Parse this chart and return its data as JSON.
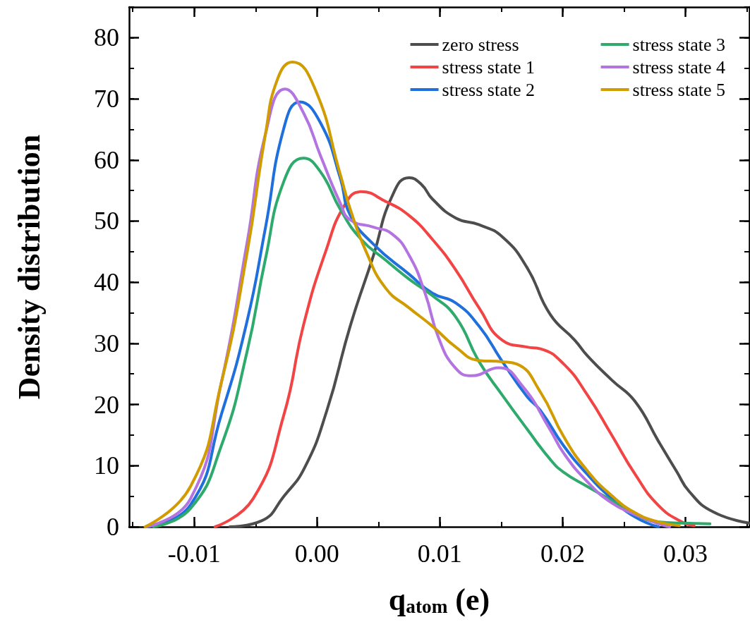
{
  "chart_data": {
    "type": "line",
    "xlabel": "q$_{atom}$ (e)",
    "ylabel": "Density distribution",
    "xlim": [
      -0.0153,
      0.0352
    ],
    "ylim": [
      0,
      85
    ],
    "xticks": [
      {
        "value": -0.01,
        "label": "-0.01"
      },
      {
        "value": 0,
        "label": "0.00"
      },
      {
        "value": 0.01,
        "label": "0.01"
      },
      {
        "value": 0.02,
        "label": "0.02"
      },
      {
        "value": 0.03,
        "label": "0.03"
      }
    ],
    "yticks": [
      0,
      10,
      20,
      30,
      40,
      50,
      60,
      70,
      80
    ],
    "grid": false,
    "legend": "top right",
    "marker": "none",
    "line_style": "solid",
    "series": [
      {
        "name": "zero stress",
        "color": "#4d4d4d",
        "x": [
          -0.0071,
          -0.0045,
          -0.0027,
          -0.001,
          0.0008,
          0.0027,
          0.0046,
          0.0061,
          0.0075,
          0.0085,
          0.0094,
          0.0113,
          0.0132,
          0.0151,
          0.0171,
          0.019,
          0.021,
          0.022,
          0.024,
          0.0259,
          0.0278,
          0.0293,
          0.0303,
          0.0322,
          0.0352
        ],
        "values": [
          0,
          1,
          5,
          9.7,
          19,
          32.8,
          44.4,
          54,
          57.1,
          56,
          53.6,
          50.5,
          49.4,
          47.4,
          42.4,
          34.7,
          30.5,
          28,
          24,
          20.5,
          14,
          9,
          5.8,
          2.5,
          0.6
        ]
      },
      {
        "name": "stress state 1",
        "color": "#f24444",
        "x": [
          -0.0083,
          -0.0052,
          -0.0027,
          -0.0011,
          0.0007,
          0.0023,
          0.0036,
          0.0056,
          0.0075,
          0.0094,
          0.0113,
          0.0132,
          0.0151,
          0.0171,
          0.0182,
          0.0201,
          0.022,
          0.024,
          0.0259,
          0.0278,
          0.0297,
          0.0307
        ],
        "values": [
          0,
          4.6,
          18.3,
          33,
          45,
          52.8,
          54.8,
          53.2,
          50.9,
          47,
          42,
          35.8,
          30.5,
          29.4,
          29.1,
          26.6,
          21.6,
          15,
          8.6,
          3.5,
          0.8,
          0.2
        ]
      },
      {
        "name": "stress state 2",
        "color": "#1f6fdc",
        "x": [
          -0.0139,
          -0.0103,
          -0.0078,
          -0.0057,
          -0.0042,
          -0.0027,
          -0.0014,
          0.0003,
          0.0019,
          0.0027,
          0.0046,
          0.0075,
          0.0094,
          0.0113,
          0.0132,
          0.0151,
          0.0171,
          0.0182,
          0.0201,
          0.022,
          0.024,
          0.0259,
          0.0278
        ],
        "values": [
          0,
          3.6,
          18.3,
          33.6,
          48.9,
          65.2,
          69.5,
          66,
          57,
          51,
          46.2,
          41.3,
          38.2,
          36.6,
          32.8,
          27,
          21.3,
          19,
          13.2,
          8.6,
          4.6,
          1.6,
          0
        ]
      },
      {
        "name": "stress state 3",
        "color": "#2eaa6c",
        "x": [
          -0.0133,
          -0.0103,
          -0.0078,
          -0.0057,
          -0.0042,
          -0.0027,
          -0.0011,
          0.0003,
          0.0019,
          0.0036,
          0.0056,
          0.0075,
          0.0094,
          0.0113,
          0.0132,
          0.0151,
          0.0171,
          0.019,
          0.0201,
          0.022,
          0.024,
          0.0259,
          0.0278,
          0.0297,
          0.032
        ],
        "values": [
          0,
          3,
          13.2,
          28.6,
          43.8,
          56.5,
          60.3,
          58,
          51.9,
          47,
          43.6,
          40.5,
          37.8,
          34.3,
          27,
          21.5,
          16,
          11,
          8.9,
          6.6,
          4.3,
          2,
          0.8,
          0.6,
          0.5
        ]
      },
      {
        "name": "stress state 4",
        "color": "#b373e0",
        "x": [
          -0.0139,
          -0.0103,
          -0.0078,
          -0.0057,
          -0.0042,
          -0.0026,
          -0.0011,
          0.0003,
          0.0019,
          0.0027,
          0.0046,
          0.0061,
          0.0075,
          0.0088,
          0.0099,
          0.0113,
          0.0126,
          0.0148,
          0.0167,
          0.019,
          0.0201,
          0.022,
          0.024,
          0.0259,
          0.0278,
          0.0287
        ],
        "values": [
          0,
          4.6,
          23.5,
          46.4,
          64.2,
          71.6,
          67.7,
          60.6,
          52.9,
          50.2,
          49,
          47.9,
          44.4,
          38.2,
          30.9,
          25.9,
          24.7,
          26,
          23.1,
          15.8,
          12,
          7.4,
          3.9,
          2,
          0.5,
          0
        ]
      },
      {
        "name": "stress state 5",
        "color": "#d19c00",
        "x": [
          -0.014,
          -0.0103,
          -0.0078,
          -0.0057,
          -0.0042,
          -0.0032,
          -0.002,
          -0.0002,
          0.0019,
          0.0027,
          0.004,
          0.0056,
          0.0075,
          0.0094,
          0.0113,
          0.0132,
          0.0151,
          0.0163,
          0.0182,
          0.0201,
          0.022,
          0.024,
          0.0259,
          0.0278,
          0.0295
        ],
        "values": [
          0,
          6.6,
          23.5,
          44.7,
          64.2,
          73.3,
          76,
          71.8,
          57.6,
          52,
          45,
          39,
          35.8,
          32.8,
          29.4,
          27.2,
          27,
          26.6,
          22,
          14.7,
          9.2,
          5.1,
          2.3,
          0.8,
          0.2
        ]
      }
    ]
  }
}
